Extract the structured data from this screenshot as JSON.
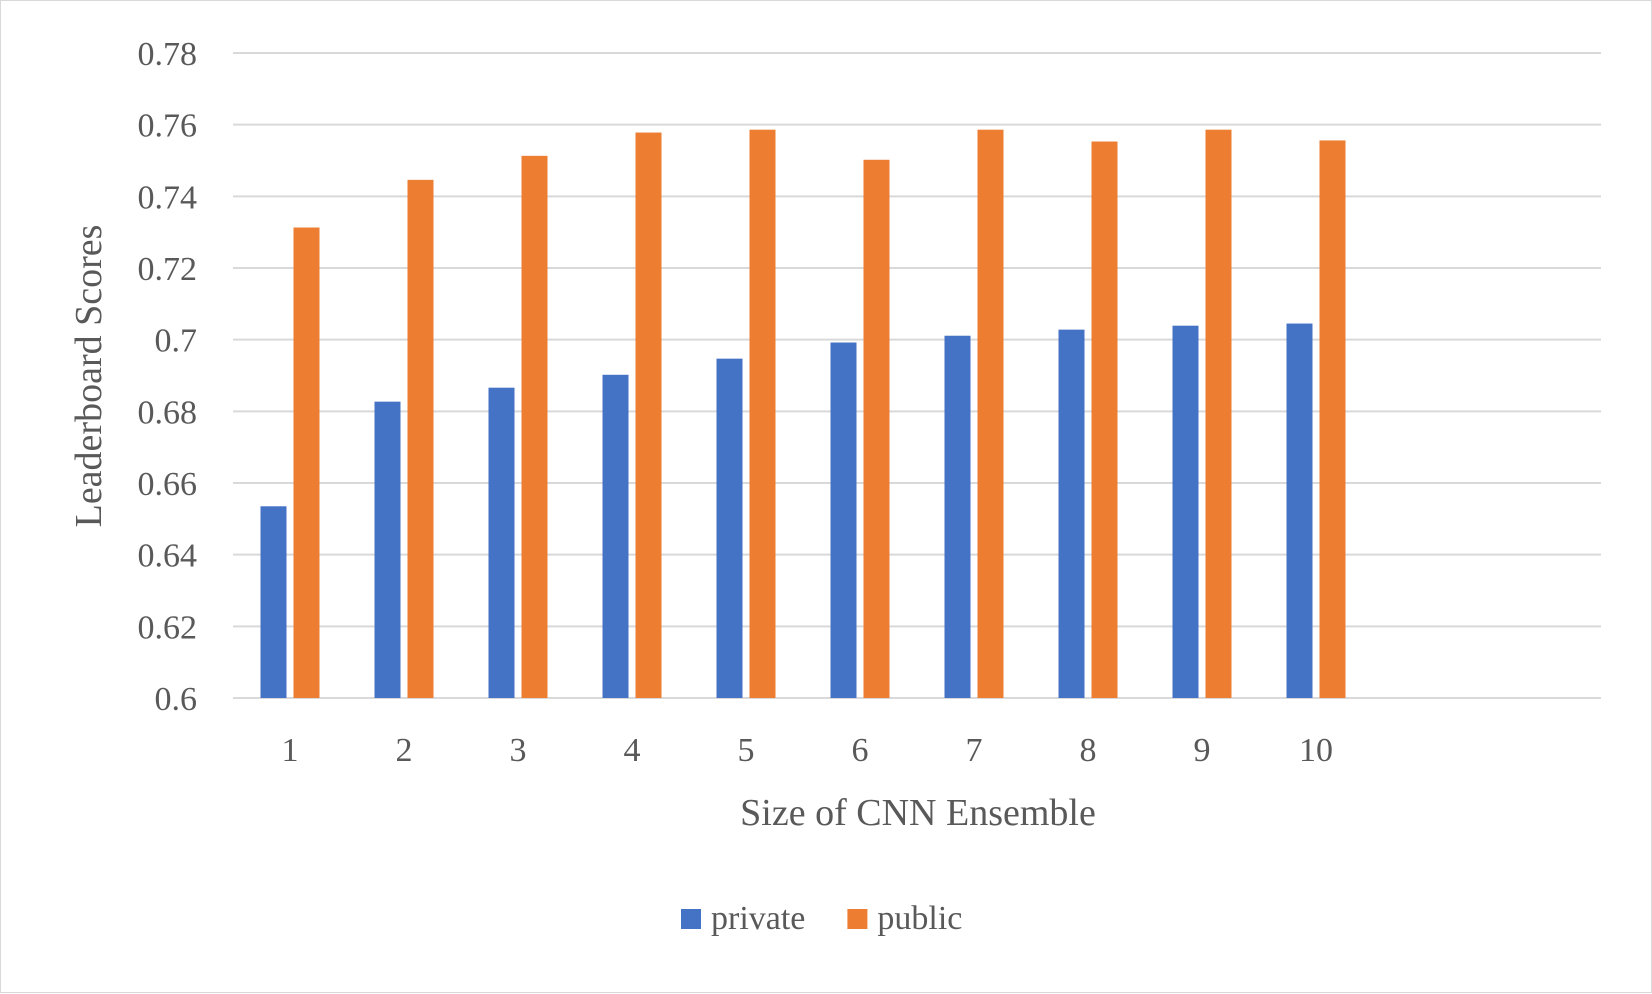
{
  "chart_data": {
    "type": "bar",
    "title": "",
    "xlabel": "Size of CNN Ensemble",
    "ylabel": "Leaderboard Scores",
    "categories": [
      "1",
      "2",
      "3",
      "4",
      "5",
      "6",
      "7",
      "8",
      "9",
      "10"
    ],
    "series": [
      {
        "name": "private",
        "color": "#4472c4",
        "values": [
          0.6535,
          0.6827,
          0.6866,
          0.6902,
          0.6947,
          0.6992,
          0.7011,
          0.7028,
          0.7039,
          0.7045
        ]
      },
      {
        "name": "public",
        "color": "#ed7d31",
        "values": [
          0.7313,
          0.7446,
          0.7513,
          0.7578,
          0.7586,
          0.7502,
          0.7586,
          0.7553,
          0.7586,
          0.7556
        ]
      }
    ],
    "ylim": [
      0.6,
      0.78
    ],
    "yticks": [
      "0.6",
      "0.62",
      "0.64",
      "0.66",
      "0.68",
      "0.7",
      "0.72",
      "0.74",
      "0.76",
      "0.78"
    ],
    "grid": true,
    "legend_position": "bottom"
  }
}
